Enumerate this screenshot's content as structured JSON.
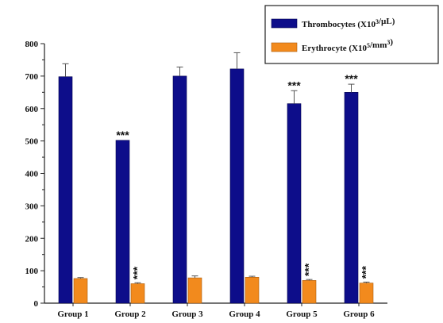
{
  "chart_data": {
    "type": "bar",
    "categories": [
      "Group 1",
      "Group 2",
      "Group 3",
      "Group 4",
      "Group 5",
      "Group 6"
    ],
    "ylim": [
      0,
      800
    ],
    "yticks": [
      0,
      100,
      200,
      300,
      400,
      500,
      600,
      700,
      800
    ],
    "grid": false,
    "legend_position": "top-right",
    "series": [
      {
        "name": "Thrombocytes (X10³/µL)",
        "legend": {
          "text": "Thrombocytes (X10",
          "sup": "3",
          "tail": "/µL)"
        },
        "color": "#0d0d8a",
        "values": [
          698,
          502,
          700,
          722,
          615,
          650
        ],
        "errors": [
          40,
          0,
          28,
          50,
          40,
          25
        ],
        "significance": [
          "",
          "***",
          "",
          "",
          "***",
          "***"
        ]
      },
      {
        "name": "Erythrocyte (X10⁵/mm³)",
        "legend": {
          "text": "Erythrocyte (X10",
          "sup": "5",
          "mid": "/mm",
          "sup2": "3",
          "tail": ")"
        },
        "color": "#f28a1d",
        "values": [
          76,
          60,
          78,
          80,
          70,
          62
        ],
        "errors": [
          3,
          3,
          6,
          3,
          3,
          3
        ],
        "significance": [
          "",
          "***",
          "",
          "",
          "***",
          "***"
        ]
      }
    ]
  }
}
